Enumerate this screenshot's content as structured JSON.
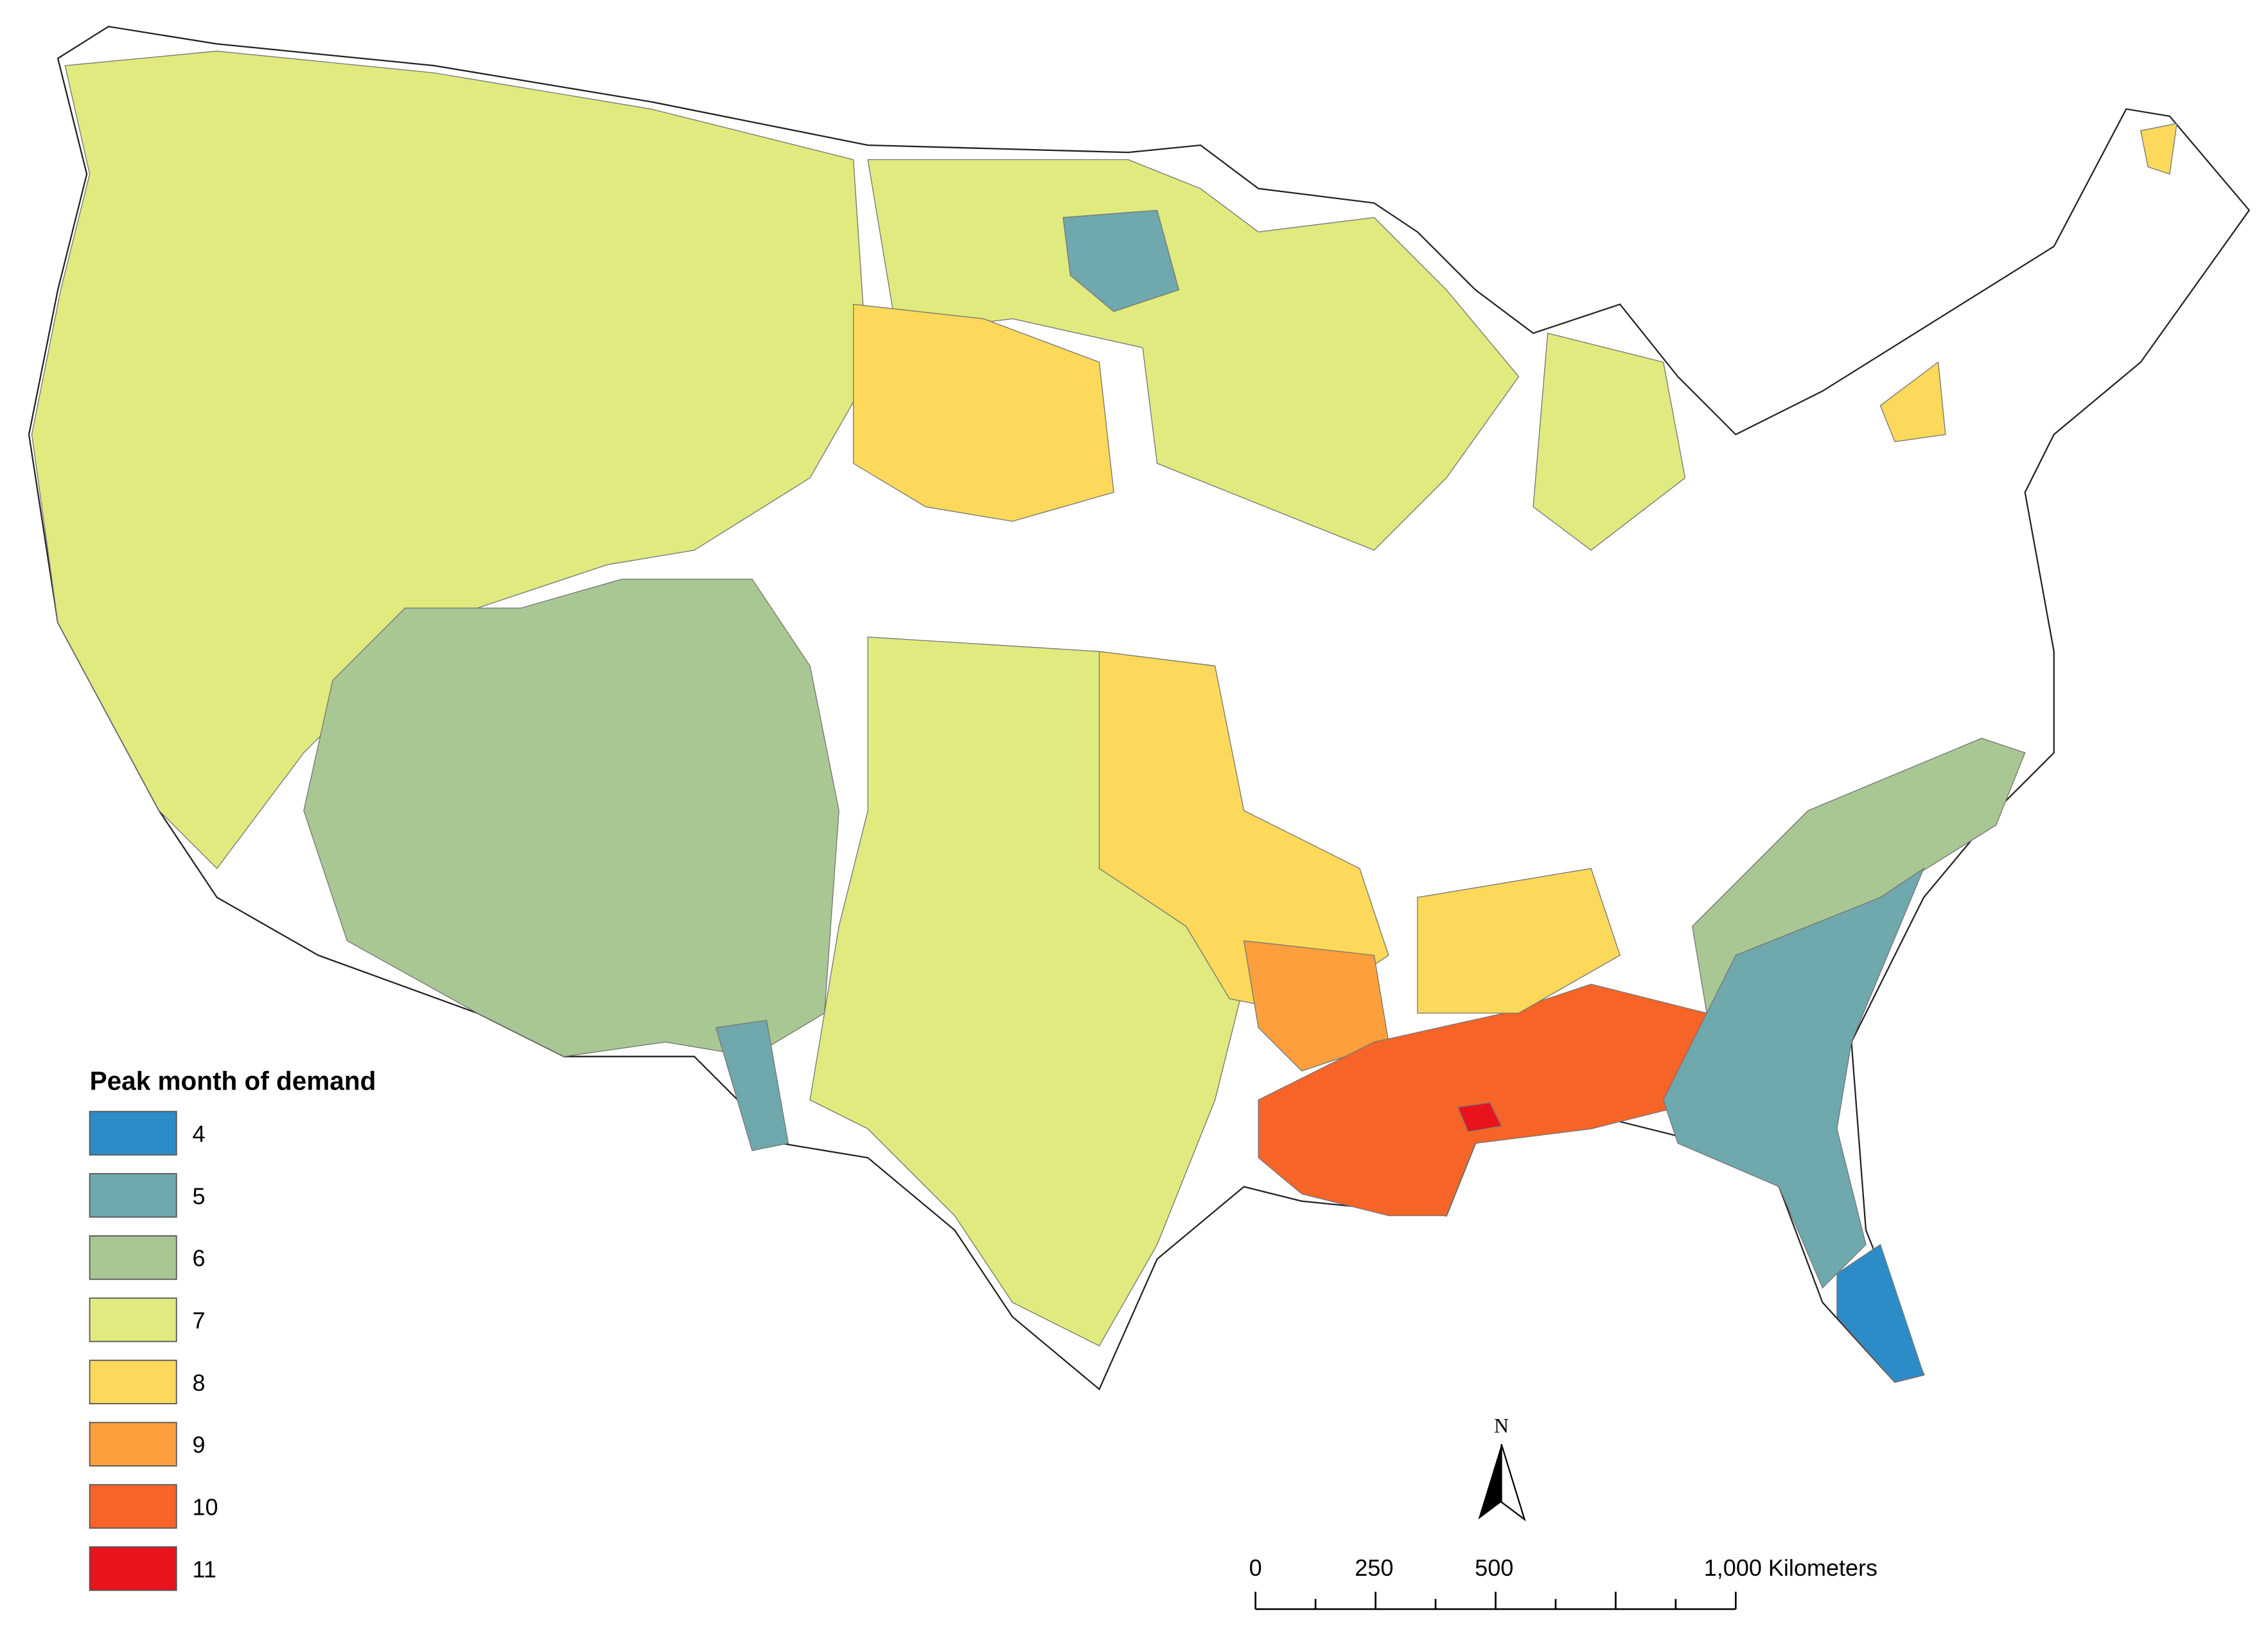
{
  "legend": {
    "title": "Peak month of demand",
    "items": [
      {
        "label": "4",
        "color": "#2b8cc8"
      },
      {
        "label": "5",
        "color": "#6fa8ad"
      },
      {
        "label": "6",
        "color": "#a9c793"
      },
      {
        "label": "7",
        "color": "#e1ea7e"
      },
      {
        "label": "8",
        "color": "#fcd95a"
      },
      {
        "label": "9",
        "color": "#fd9f3c"
      },
      {
        "label": "10",
        "color": "#f76427"
      },
      {
        "label": "11",
        "color": "#e8131c"
      }
    ]
  },
  "north_arrow": {
    "label": "N"
  },
  "scale_bar": {
    "labels": [
      "0",
      "250",
      "500",
      "1,000 Kilometers"
    ]
  }
}
